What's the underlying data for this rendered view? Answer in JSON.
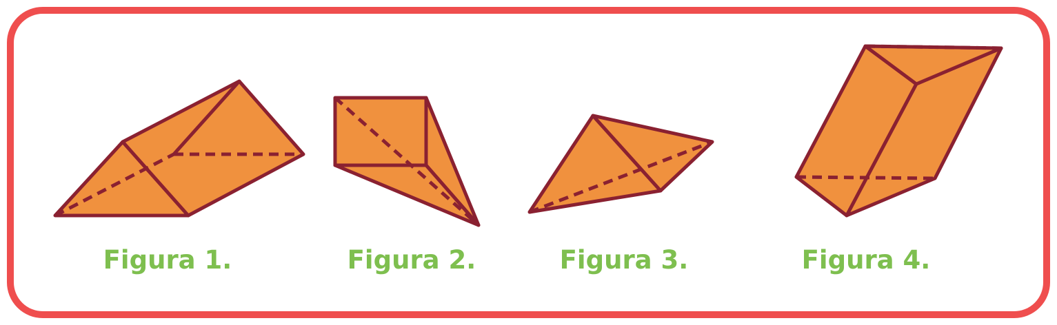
{
  "figures": [
    {
      "label": "Figura 1."
    },
    {
      "label": "Figura 2."
    },
    {
      "label": "Figura 3."
    },
    {
      "label": "Figura 4."
    }
  ],
  "colors": {
    "frame_border": "#ef4e4e",
    "face_fill": "#f0913e",
    "edge_stroke": "#8a2131",
    "caption_text": "#7ebf4f"
  }
}
